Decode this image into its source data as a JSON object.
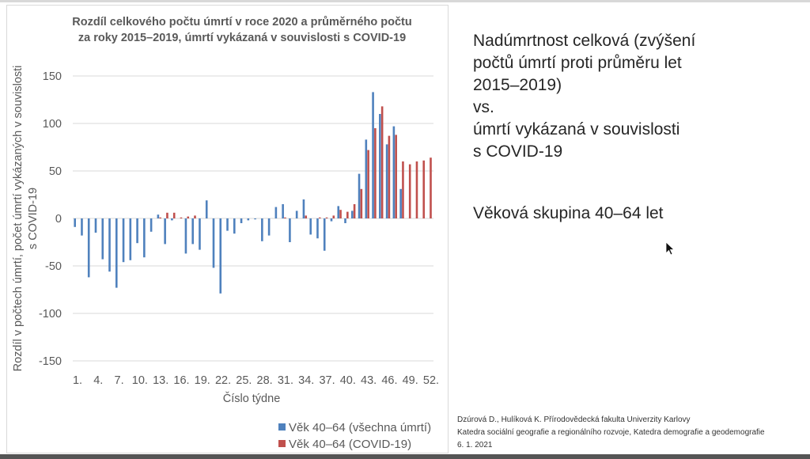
{
  "slide": {
    "heading_lines": [
      "Nadúmrtnost celková (zvýšení",
      "počtů úmrtí proti průměru let",
      "2015–2019)",
      "vs.",
      "úmrtí vykázaná v souvislosti",
      "s COVID-19"
    ],
    "age_group": "Věková skupina 40–64 let",
    "citation": [
      "Dzúrová D., Hulíková K. Přírodovědecká fakulta Univerzity Karlovy",
      "Katedra sociální geografie a regionálního rozvoje, Katedra demografie a geodemografie",
      "6. 1. 2021"
    ]
  },
  "chart_data": {
    "type": "bar",
    "title_lines": [
      "Rozdíl celkového počtu úmrtí v roce 2020 a průměrného počtu",
      "za roky 2015–2019, úmrtí vykázaná v souvislosti s COVID-19"
    ],
    "xlabel": "Číslo týdne",
    "ylabel_lines": [
      "Rozdíl v počtech úmrtí, počet úmrtí vykázaných v souvislosti",
      "s COVID-19"
    ],
    "ylim": [
      -150,
      150
    ],
    "yticks": [
      150,
      100,
      50,
      0,
      -50,
      -100,
      -150
    ],
    "xtick_labels": [
      "1.",
      "4.",
      "7.",
      "10.",
      "13.",
      "16.",
      "19.",
      "22.",
      "25.",
      "28.",
      "31.",
      "34.",
      "37.",
      "40.",
      "43.",
      "46.",
      "49.",
      "52."
    ],
    "grid": true,
    "legend_position": "bottom-right",
    "categories": [
      1,
      2,
      3,
      4,
      5,
      6,
      7,
      8,
      9,
      10,
      11,
      12,
      13,
      14,
      15,
      16,
      17,
      18,
      19,
      20,
      21,
      22,
      23,
      24,
      25,
      26,
      27,
      28,
      29,
      30,
      31,
      32,
      33,
      34,
      35,
      36,
      37,
      38,
      39,
      40,
      41,
      42,
      43,
      44,
      45,
      46,
      47,
      48,
      49,
      50,
      51,
      52
    ],
    "series": [
      {
        "name": "Věk 40–64 (všechna úmrtí)",
        "color": "#4f81bd",
        "values": [
          -9,
          -18,
          -62,
          -15,
          -43,
          -56,
          -73,
          -46,
          -44,
          -26,
          -41,
          -14,
          4,
          -27,
          -2,
          0,
          -37,
          -27,
          -33,
          19,
          -52,
          -79,
          -13,
          -16,
          -5,
          -2,
          -1,
          -24,
          -18,
          12,
          15,
          -25,
          8,
          20,
          -17,
          -21,
          -34,
          -3,
          13,
          -5,
          8,
          47,
          83,
          133,
          110,
          78,
          97,
          31,
          null,
          null,
          null,
          null
        ]
      },
      {
        "name": "Věk 40–64 (COVID-19)",
        "color": "#c0504d",
        "values": [
          0,
          0,
          0,
          0,
          0,
          0,
          0,
          0,
          0,
          0,
          0,
          0,
          1,
          6,
          6,
          1,
          2,
          3,
          0,
          0,
          0,
          0,
          0,
          0,
          0,
          0,
          0,
          0,
          0,
          0,
          1,
          0,
          0,
          3,
          0,
          1,
          1,
          3,
          9,
          7,
          15,
          31,
          72,
          95,
          118,
          87,
          88,
          60,
          57,
          60,
          61,
          64
        ]
      }
    ]
  }
}
